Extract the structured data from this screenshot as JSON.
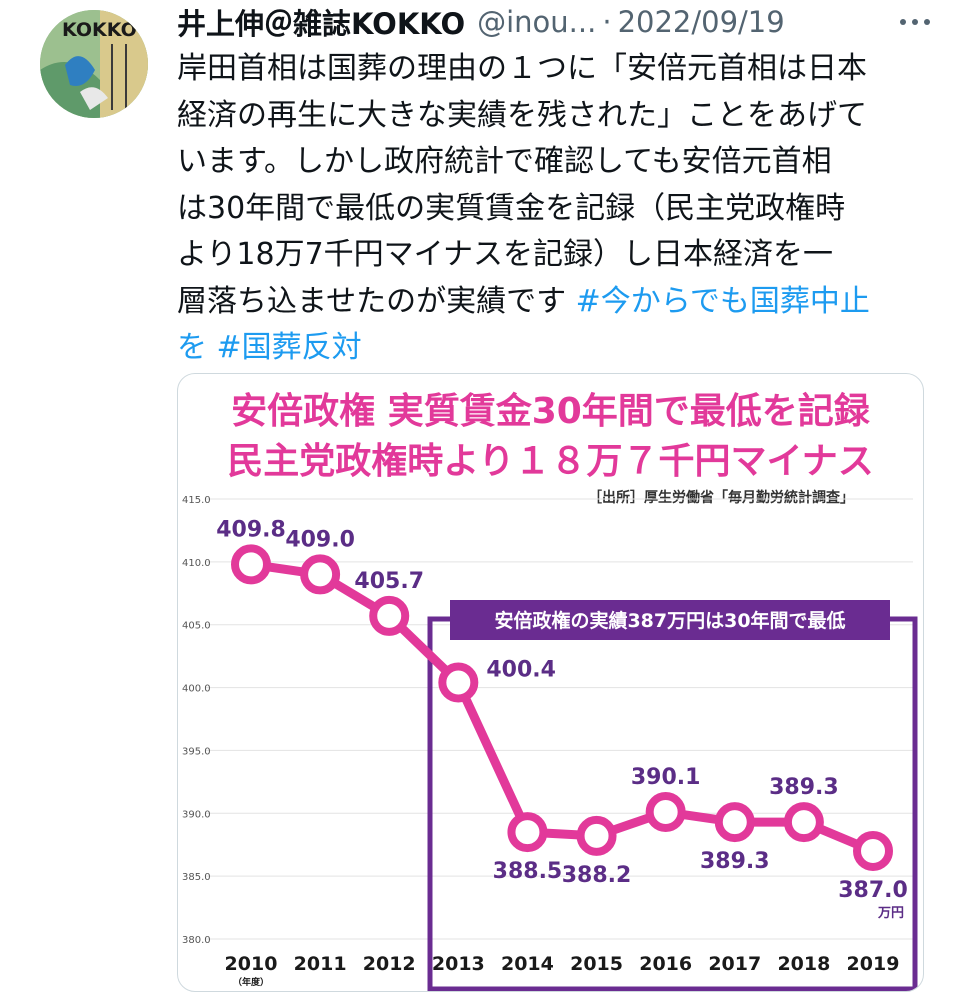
{
  "tweet": {
    "author": "井上伸＠雑誌KOKKO",
    "handle": "@inou...",
    "separator": "·",
    "date": "2022/09/19",
    "avatar_text": "KOKKO",
    "text_lines": [
      "岸田首相は国葬の理由の１つに「安倍元首相は日本",
      "経済の再生に大きな実績を残された」ことをあげて",
      "います。しかし政府統計で確認しても安倍元首相",
      "は30年間で最低の実質賃金を記録（民主党政権時",
      "より18万7千円マイナスを記録）し日本経済を一",
      "層落ち込ませたのが実績です"
    ],
    "hashtag1_part1": "#今からでも国葬中止",
    "hashtag1_part2": "を",
    "hashtag2": "#国葬反対"
  },
  "chart_data": {
    "type": "line",
    "title": "安倍政権 実質賃金30年間で最低を記録",
    "subtitle": "民主党政権時より１８万７千円マイナス",
    "source": "［出所］厚生労働省「毎月勤労統計調査」",
    "annotation": "安倍政権の実績387万円は30年間で最低",
    "x": [
      "2010",
      "2011",
      "2012",
      "2013",
      "2014",
      "2015",
      "2016",
      "2017",
      "2018",
      "2019"
    ],
    "x_unit": "（年度）",
    "values": [
      409.8,
      409.0,
      405.7,
      400.4,
      388.5,
      388.2,
      390.1,
      389.3,
      389.3,
      387.0
    ],
    "value_labels": [
      "409.8",
      "409.0",
      "405.7",
      "400.4",
      "388.5",
      "388.2",
      "390.1",
      "389.3",
      "389.3",
      "387.0"
    ],
    "last_unit": "万円",
    "yticks": [
      "415.0",
      "410.0",
      "405.0",
      "400.0",
      "395.0",
      "390.0",
      "385.0",
      "380.0"
    ],
    "ylim": [
      380,
      415
    ],
    "line_color": "#e2399a",
    "label_color": "#5b2d86",
    "box_color": "#6a2c91",
    "grid": true
  }
}
